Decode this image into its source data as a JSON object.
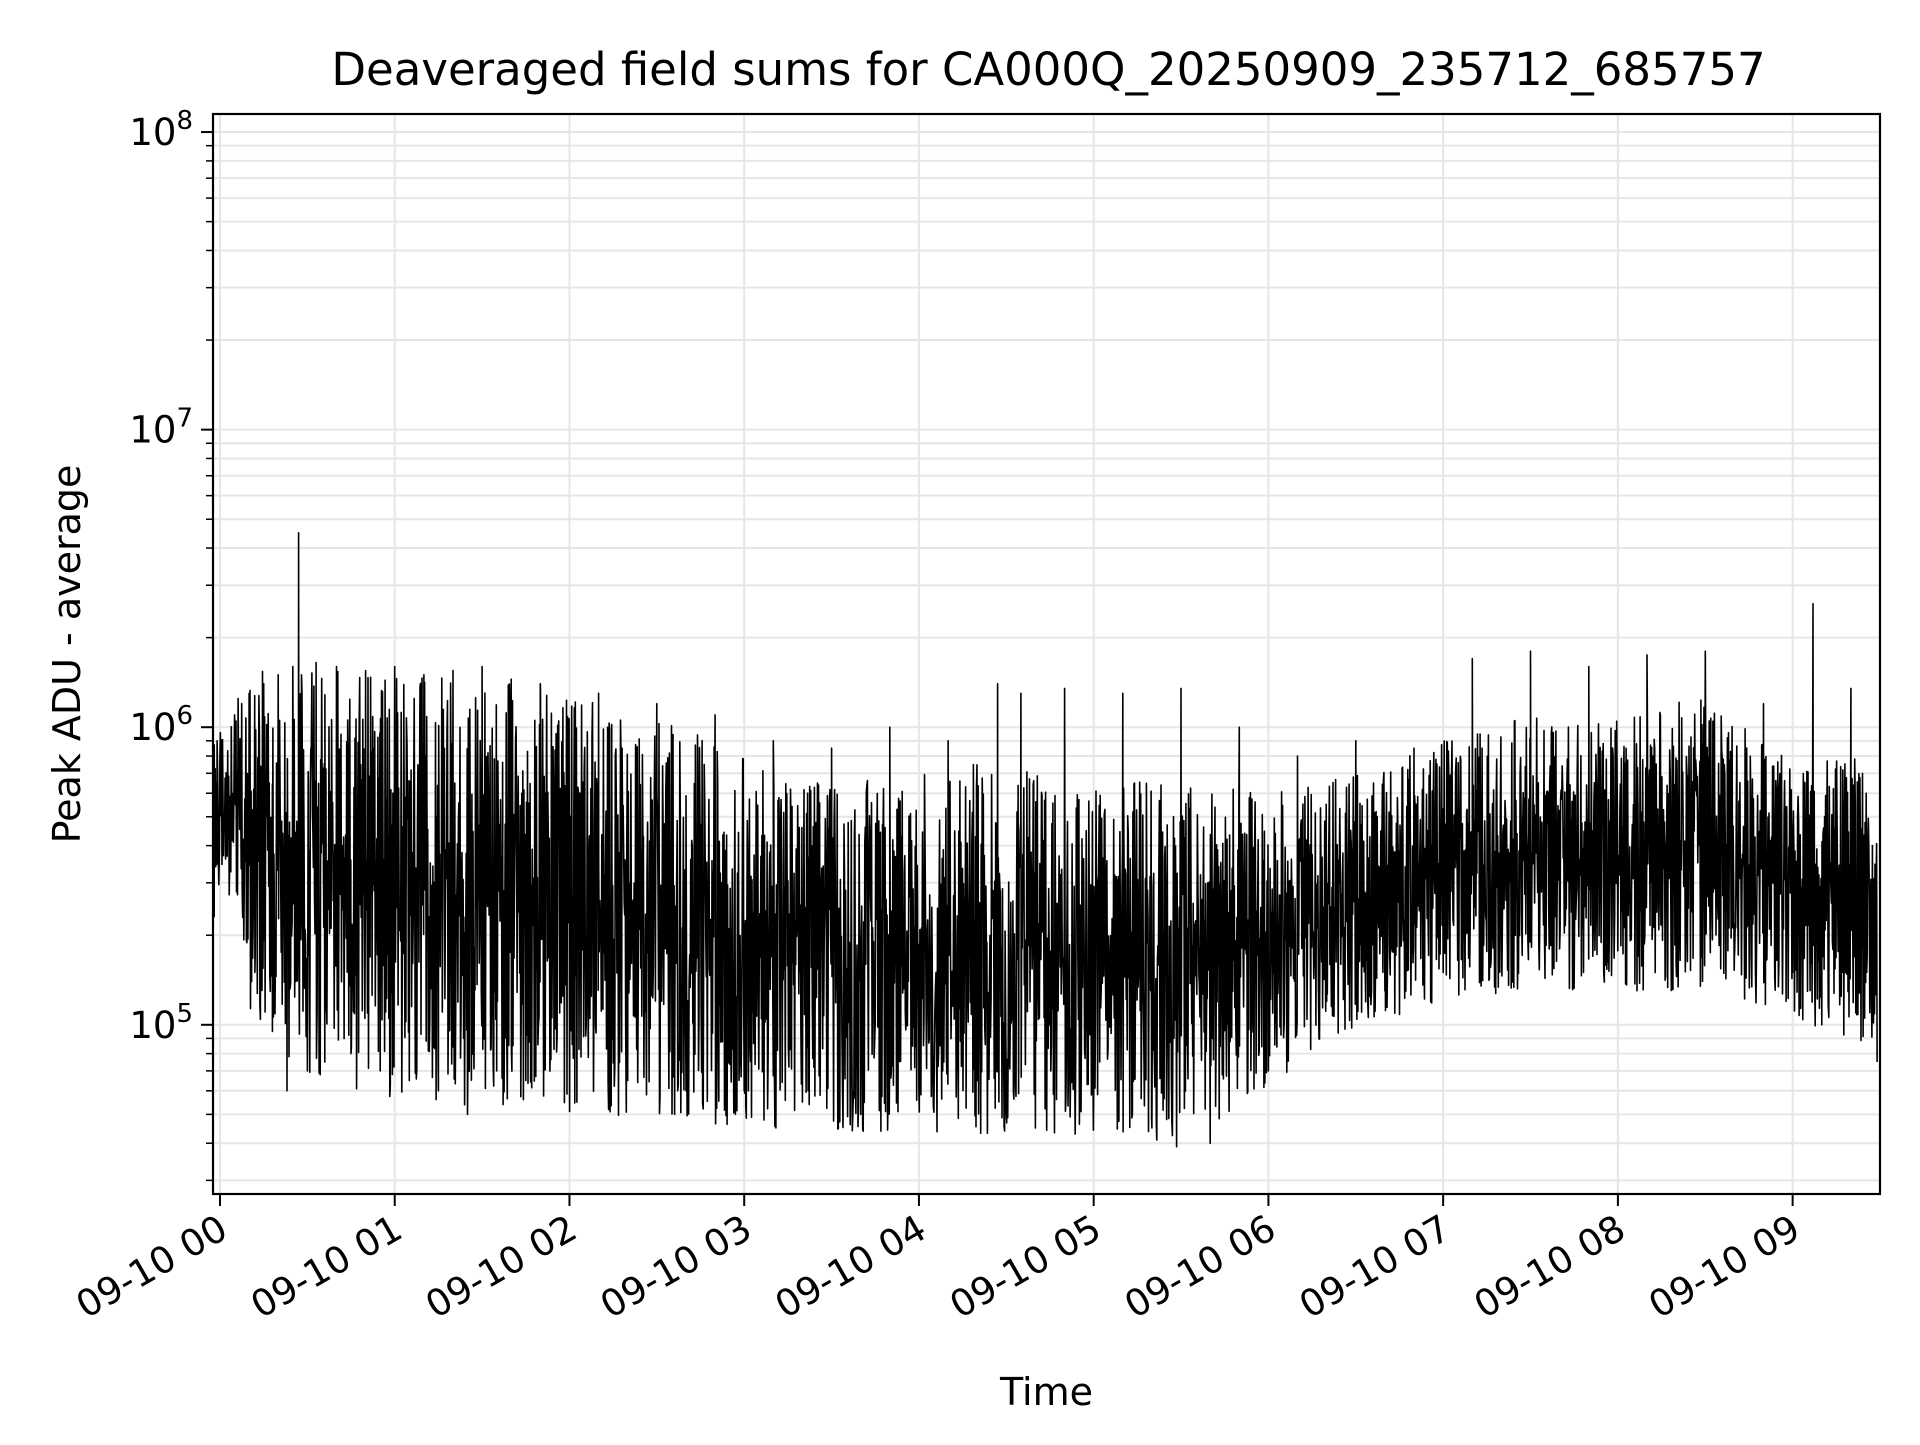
{
  "chart_data": {
    "type": "line",
    "title": "Deaveraged field sums for CA000Q_20250909_235712_685757",
    "xlabel": "Time",
    "ylabel": "Peak ADU - average",
    "y_scale": "log",
    "ylim": [
      27000,
      115000000
    ],
    "xlim": [
      "09-09 23:57:36",
      "09-10 09:30:00"
    ],
    "grid": true,
    "line_color": "#000000",
    "grid_color": "#e6e6e6",
    "x_ticks": [
      {
        "label": "09-10 00",
        "value": "09-10 00:00"
      },
      {
        "label": "09-10 01",
        "value": "09-10 01:00"
      },
      {
        "label": "09-10 02",
        "value": "09-10 02:00"
      },
      {
        "label": "09-10 03",
        "value": "09-10 03:00"
      },
      {
        "label": "09-10 04",
        "value": "09-10 04:00"
      },
      {
        "label": "09-10 05",
        "value": "09-10 05:00"
      },
      {
        "label": "09-10 06",
        "value": "09-10 06:00"
      },
      {
        "label": "09-10 07",
        "value": "09-10 07:00"
      },
      {
        "label": "09-10 08",
        "value": "09-10 08:00"
      },
      {
        "label": "09-10 09",
        "value": "09-10 09:00"
      }
    ],
    "y_ticks": [
      {
        "base": "10",
        "exp": "5",
        "value": 100000
      },
      {
        "base": "10",
        "exp": "6",
        "value": 1000000
      },
      {
        "base": "10",
        "exp": "7",
        "value": 10000000
      },
      {
        "base": "10",
        "exp": "8",
        "value": 100000000
      }
    ],
    "series": [
      {
        "x": [
          "09-09 23:58",
          "09-09 23:59",
          "09-10 00:02",
          "09-10 00:05",
          "09-10 00:08",
          "09-10 00:10",
          "09-10 00:12",
          "09-10 00:15",
          "09-10 00:18",
          "09-10 00:20",
          "09-10 00:23",
          "09-10 00:25",
          "09-10 00:27",
          "09-10 00:28",
          "09-10 00:30",
          "09-10 00:33",
          "09-10 00:36",
          "09-10 00:40",
          "09-10 00:45",
          "09-10 00:50",
          "09-10 00:55",
          "09-10 01:00",
          "09-10 01:05",
          "09-10 01:10",
          "09-10 01:15",
          "09-10 01:20",
          "09-10 01:25",
          "09-10 01:30",
          "09-10 01:35",
          "09-10 01:40",
          "09-10 01:45",
          "09-10 01:50",
          "09-10 02:00",
          "09-10 02:10",
          "09-10 02:20",
          "09-10 02:30",
          "09-10 02:40",
          "09-10 02:50",
          "09-10 03:00",
          "09-10 03:10",
          "09-10 03:20",
          "09-10 03:30",
          "09-10 03:40",
          "09-10 03:50",
          "09-10 04:00",
          "09-10 04:10",
          "09-10 04:20",
          "09-10 04:27",
          "09-10 04:30",
          "09-10 04:35",
          "09-10 04:40",
          "09-10 04:50",
          "09-10 05:00",
          "09-10 05:10",
          "09-10 05:20",
          "09-10 05:30",
          "09-10 05:40",
          "09-10 05:50",
          "09-10 06:00",
          "09-10 06:10",
          "09-10 06:20",
          "09-10 06:30",
          "09-10 06:40",
          "09-10 06:50",
          "09-10 07:00",
          "09-10 07:10",
          "09-10 07:20",
          "09-10 07:30",
          "09-10 07:40",
          "09-10 07:50",
          "09-10 08:00",
          "09-10 08:10",
          "09-10 08:20",
          "09-10 08:30",
          "09-10 08:40",
          "09-10 08:50",
          "09-10 09:00",
          "09-10 09:07",
          "09-10 09:10",
          "09-10 09:20",
          "09-10 09:29"
        ],
        "y": [
          230000,
          900000,
          480000,
          1100000,
          420000,
          1300000,
          150000,
          1400000,
          95000,
          1500000,
          60000,
          1600000,
          4500000,
          1500000,
          70000,
          1650000,
          75000,
          1600000,
          80000,
          1550000,
          70000,
          1600000,
          65000,
          1500000,
          60000,
          1550000,
          50000,
          1600000,
          70000,
          1450000,
          65000,
          1400000,
          70000,
          1300000,
          65000,
          1200000,
          60000,
          1100000,
          60000,
          900000,
          55000,
          850000,
          50000,
          1000000,
          60000,
          900000,
          65000,
          1400000,
          50000,
          1300000,
          45000,
          1350000,
          60000,
          1300000,
          45000,
          1350000,
          40000,
          1000000,
          70000,
          800000,
          120000,
          900000,
          130000,
          850000,
          150000,
          1700000,
          220000,
          1800000,
          180000,
          1600000,
          200000,
          1750000,
          160000,
          1800000,
          170000,
          1200000,
          150000,
          2600000,
          100000,
          1350000,
          75000
        ],
        "band": [
          {
            "x": "09-09 23:58",
            "lo": 420000,
            "hi": 900000
          },
          {
            "x": "09-10 00:05",
            "lo": 380000,
            "hi": 1200000
          },
          {
            "x": "09-10 00:10",
            "lo": 160000,
            "hi": 1500000
          },
          {
            "x": "09-10 00:20",
            "lo": 110000,
            "hi": 1600000
          },
          {
            "x": "09-10 00:40",
            "lo": 90000,
            "hi": 1550000
          },
          {
            "x": "09-10 01:00",
            "lo": 80000,
            "hi": 1500000
          },
          {
            "x": "09-10 01:30",
            "lo": 75000,
            "hi": 1450000
          },
          {
            "x": "09-10 02:00",
            "lo": 72000,
            "hi": 1300000
          },
          {
            "x": "09-10 02:30",
            "lo": 68000,
            "hi": 1100000
          },
          {
            "x": "09-10 03:00",
            "lo": 65000,
            "hi": 800000
          },
          {
            "x": "09-10 03:30",
            "lo": 62000,
            "hi": 650000
          },
          {
            "x": "09-10 04:00",
            "lo": 62000,
            "hi": 700000
          },
          {
            "x": "09-10 04:30",
            "lo": 58000,
            "hi": 800000
          },
          {
            "x": "09-10 05:00",
            "lo": 60000,
            "hi": 700000
          },
          {
            "x": "09-10 05:30",
            "lo": 55000,
            "hi": 650000
          },
          {
            "x": "09-10 06:00",
            "lo": 90000,
            "hi": 600000
          },
          {
            "x": "09-10 06:30",
            "lo": 140000,
            "hi": 700000
          },
          {
            "x": "09-10 07:00",
            "lo": 170000,
            "hi": 900000
          },
          {
            "x": "09-10 07:30",
            "lo": 190000,
            "hi": 1100000
          },
          {
            "x": "09-10 08:00",
            "lo": 180000,
            "hi": 1050000
          },
          {
            "x": "09-10 08:30",
            "lo": 190000,
            "hi": 1300000
          },
          {
            "x": "09-10 09:00",
            "lo": 150000,
            "hi": 750000
          },
          {
            "x": "09-10 09:29",
            "lo": 120000,
            "hi": 800000
          }
        ]
      }
    ]
  }
}
